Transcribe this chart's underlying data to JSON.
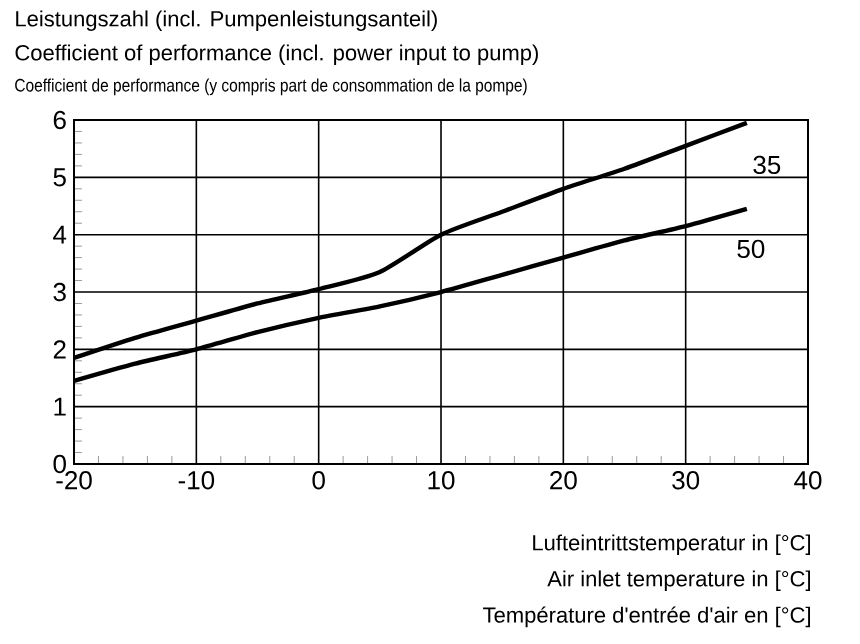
{
  "chart_data": {
    "type": "line",
    "title": "Leistungszahl (incl. Pumpenleistungsanteil)",
    "subtitle": "Coefficient of performance (incl. power input to pump)",
    "xlabel": "Lufteintrittstemperatur in [°C]",
    "annotations": [
      "Coefficient de performance (y compris part de consommation de la pompe)",
      "Air inlet temperature in [°C]",
      "Température d'entrée d'air en [°C]"
    ],
    "x": [
      -20,
      -15,
      -10,
      -5,
      0,
      5,
      10,
      15,
      20,
      25,
      30,
      35
    ],
    "series": [
      {
        "name": "35",
        "color": "#000000",
        "values": [
          1.85,
          2.2,
          2.5,
          2.8,
          3.05,
          3.35,
          4.0,
          4.4,
          4.8,
          5.15,
          5.55,
          5.95
        ]
      },
      {
        "name": "50",
        "color": "#000000",
        "values": [
          1.45,
          1.75,
          2.0,
          2.3,
          2.55,
          2.75,
          3.0,
          3.3,
          3.6,
          3.9,
          4.15,
          4.45
        ]
      }
    ],
    "xlim": [
      -20,
      40
    ],
    "ylim": [
      0,
      6
    ],
    "xticks": [
      -20,
      -10,
      0,
      10,
      20,
      30,
      40
    ],
    "yticks": [
      0,
      1,
      2,
      3,
      4,
      5,
      6
    ],
    "grid": true,
    "marker": "none",
    "line_style": "solid"
  }
}
